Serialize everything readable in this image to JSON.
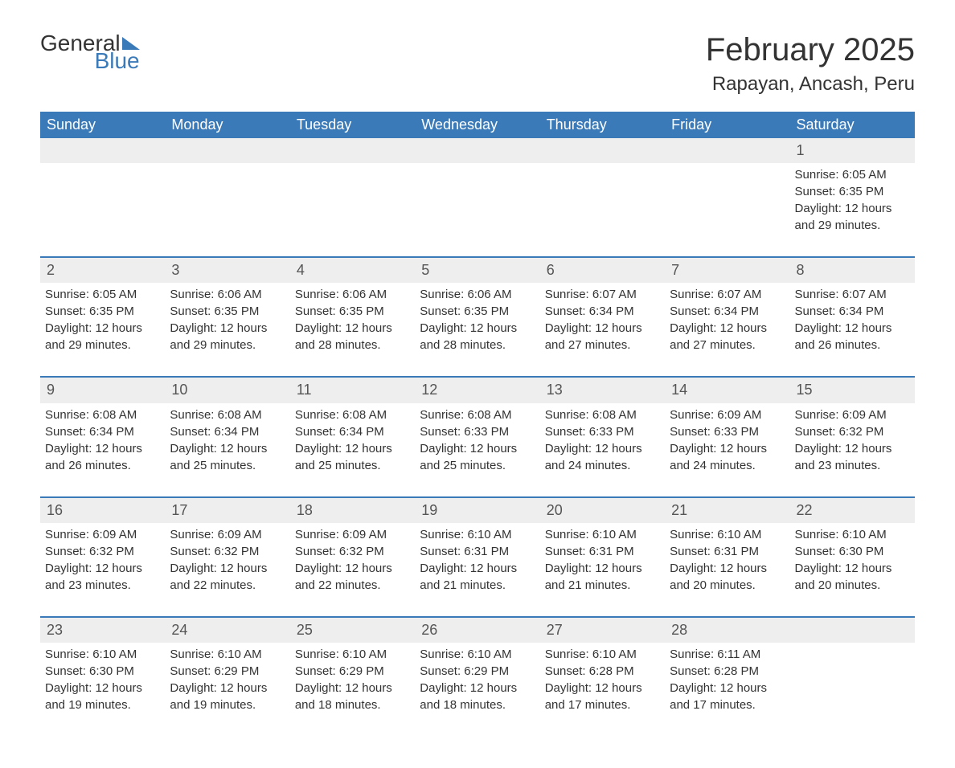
{
  "logo": {
    "word1": "General",
    "word2": "Blue"
  },
  "title": "February 2025",
  "location": "Rapayan, Ancash, Peru",
  "colors": {
    "header_bg": "#3b7ab8",
    "header_text": "#ffffff",
    "band_bg": "#eeeeee",
    "row_border": "#3b7ab8",
    "text": "#333333",
    "accent": "#3b7ab8",
    "background": "#ffffff"
  },
  "days_of_week": [
    "Sunday",
    "Monday",
    "Tuesday",
    "Wednesday",
    "Thursday",
    "Friday",
    "Saturday"
  ],
  "weeks": [
    [
      null,
      null,
      null,
      null,
      null,
      null,
      {
        "n": "1",
        "sunrise": "Sunrise: 6:05 AM",
        "sunset": "Sunset: 6:35 PM",
        "daylight": "Daylight: 12 hours and 29 minutes."
      }
    ],
    [
      {
        "n": "2",
        "sunrise": "Sunrise: 6:05 AM",
        "sunset": "Sunset: 6:35 PM",
        "daylight": "Daylight: 12 hours and 29 minutes."
      },
      {
        "n": "3",
        "sunrise": "Sunrise: 6:06 AM",
        "sunset": "Sunset: 6:35 PM",
        "daylight": "Daylight: 12 hours and 29 minutes."
      },
      {
        "n": "4",
        "sunrise": "Sunrise: 6:06 AM",
        "sunset": "Sunset: 6:35 PM",
        "daylight": "Daylight: 12 hours and 28 minutes."
      },
      {
        "n": "5",
        "sunrise": "Sunrise: 6:06 AM",
        "sunset": "Sunset: 6:35 PM",
        "daylight": "Daylight: 12 hours and 28 minutes."
      },
      {
        "n": "6",
        "sunrise": "Sunrise: 6:07 AM",
        "sunset": "Sunset: 6:34 PM",
        "daylight": "Daylight: 12 hours and 27 minutes."
      },
      {
        "n": "7",
        "sunrise": "Sunrise: 6:07 AM",
        "sunset": "Sunset: 6:34 PM",
        "daylight": "Daylight: 12 hours and 27 minutes."
      },
      {
        "n": "8",
        "sunrise": "Sunrise: 6:07 AM",
        "sunset": "Sunset: 6:34 PM",
        "daylight": "Daylight: 12 hours and 26 minutes."
      }
    ],
    [
      {
        "n": "9",
        "sunrise": "Sunrise: 6:08 AM",
        "sunset": "Sunset: 6:34 PM",
        "daylight": "Daylight: 12 hours and 26 minutes."
      },
      {
        "n": "10",
        "sunrise": "Sunrise: 6:08 AM",
        "sunset": "Sunset: 6:34 PM",
        "daylight": "Daylight: 12 hours and 25 minutes."
      },
      {
        "n": "11",
        "sunrise": "Sunrise: 6:08 AM",
        "sunset": "Sunset: 6:34 PM",
        "daylight": "Daylight: 12 hours and 25 minutes."
      },
      {
        "n": "12",
        "sunrise": "Sunrise: 6:08 AM",
        "sunset": "Sunset: 6:33 PM",
        "daylight": "Daylight: 12 hours and 25 minutes."
      },
      {
        "n": "13",
        "sunrise": "Sunrise: 6:08 AM",
        "sunset": "Sunset: 6:33 PM",
        "daylight": "Daylight: 12 hours and 24 minutes."
      },
      {
        "n": "14",
        "sunrise": "Sunrise: 6:09 AM",
        "sunset": "Sunset: 6:33 PM",
        "daylight": "Daylight: 12 hours and 24 minutes."
      },
      {
        "n": "15",
        "sunrise": "Sunrise: 6:09 AM",
        "sunset": "Sunset: 6:32 PM",
        "daylight": "Daylight: 12 hours and 23 minutes."
      }
    ],
    [
      {
        "n": "16",
        "sunrise": "Sunrise: 6:09 AM",
        "sunset": "Sunset: 6:32 PM",
        "daylight": "Daylight: 12 hours and 23 minutes."
      },
      {
        "n": "17",
        "sunrise": "Sunrise: 6:09 AM",
        "sunset": "Sunset: 6:32 PM",
        "daylight": "Daylight: 12 hours and 22 minutes."
      },
      {
        "n": "18",
        "sunrise": "Sunrise: 6:09 AM",
        "sunset": "Sunset: 6:32 PM",
        "daylight": "Daylight: 12 hours and 22 minutes."
      },
      {
        "n": "19",
        "sunrise": "Sunrise: 6:10 AM",
        "sunset": "Sunset: 6:31 PM",
        "daylight": "Daylight: 12 hours and 21 minutes."
      },
      {
        "n": "20",
        "sunrise": "Sunrise: 6:10 AM",
        "sunset": "Sunset: 6:31 PM",
        "daylight": "Daylight: 12 hours and 21 minutes."
      },
      {
        "n": "21",
        "sunrise": "Sunrise: 6:10 AM",
        "sunset": "Sunset: 6:31 PM",
        "daylight": "Daylight: 12 hours and 20 minutes."
      },
      {
        "n": "22",
        "sunrise": "Sunrise: 6:10 AM",
        "sunset": "Sunset: 6:30 PM",
        "daylight": "Daylight: 12 hours and 20 minutes."
      }
    ],
    [
      {
        "n": "23",
        "sunrise": "Sunrise: 6:10 AM",
        "sunset": "Sunset: 6:30 PM",
        "daylight": "Daylight: 12 hours and 19 minutes."
      },
      {
        "n": "24",
        "sunrise": "Sunrise: 6:10 AM",
        "sunset": "Sunset: 6:29 PM",
        "daylight": "Daylight: 12 hours and 19 minutes."
      },
      {
        "n": "25",
        "sunrise": "Sunrise: 6:10 AM",
        "sunset": "Sunset: 6:29 PM",
        "daylight": "Daylight: 12 hours and 18 minutes."
      },
      {
        "n": "26",
        "sunrise": "Sunrise: 6:10 AM",
        "sunset": "Sunset: 6:29 PM",
        "daylight": "Daylight: 12 hours and 18 minutes."
      },
      {
        "n": "27",
        "sunrise": "Sunrise: 6:10 AM",
        "sunset": "Sunset: 6:28 PM",
        "daylight": "Daylight: 12 hours and 17 minutes."
      },
      {
        "n": "28",
        "sunrise": "Sunrise: 6:11 AM",
        "sunset": "Sunset: 6:28 PM",
        "daylight": "Daylight: 12 hours and 17 minutes."
      },
      null
    ]
  ]
}
